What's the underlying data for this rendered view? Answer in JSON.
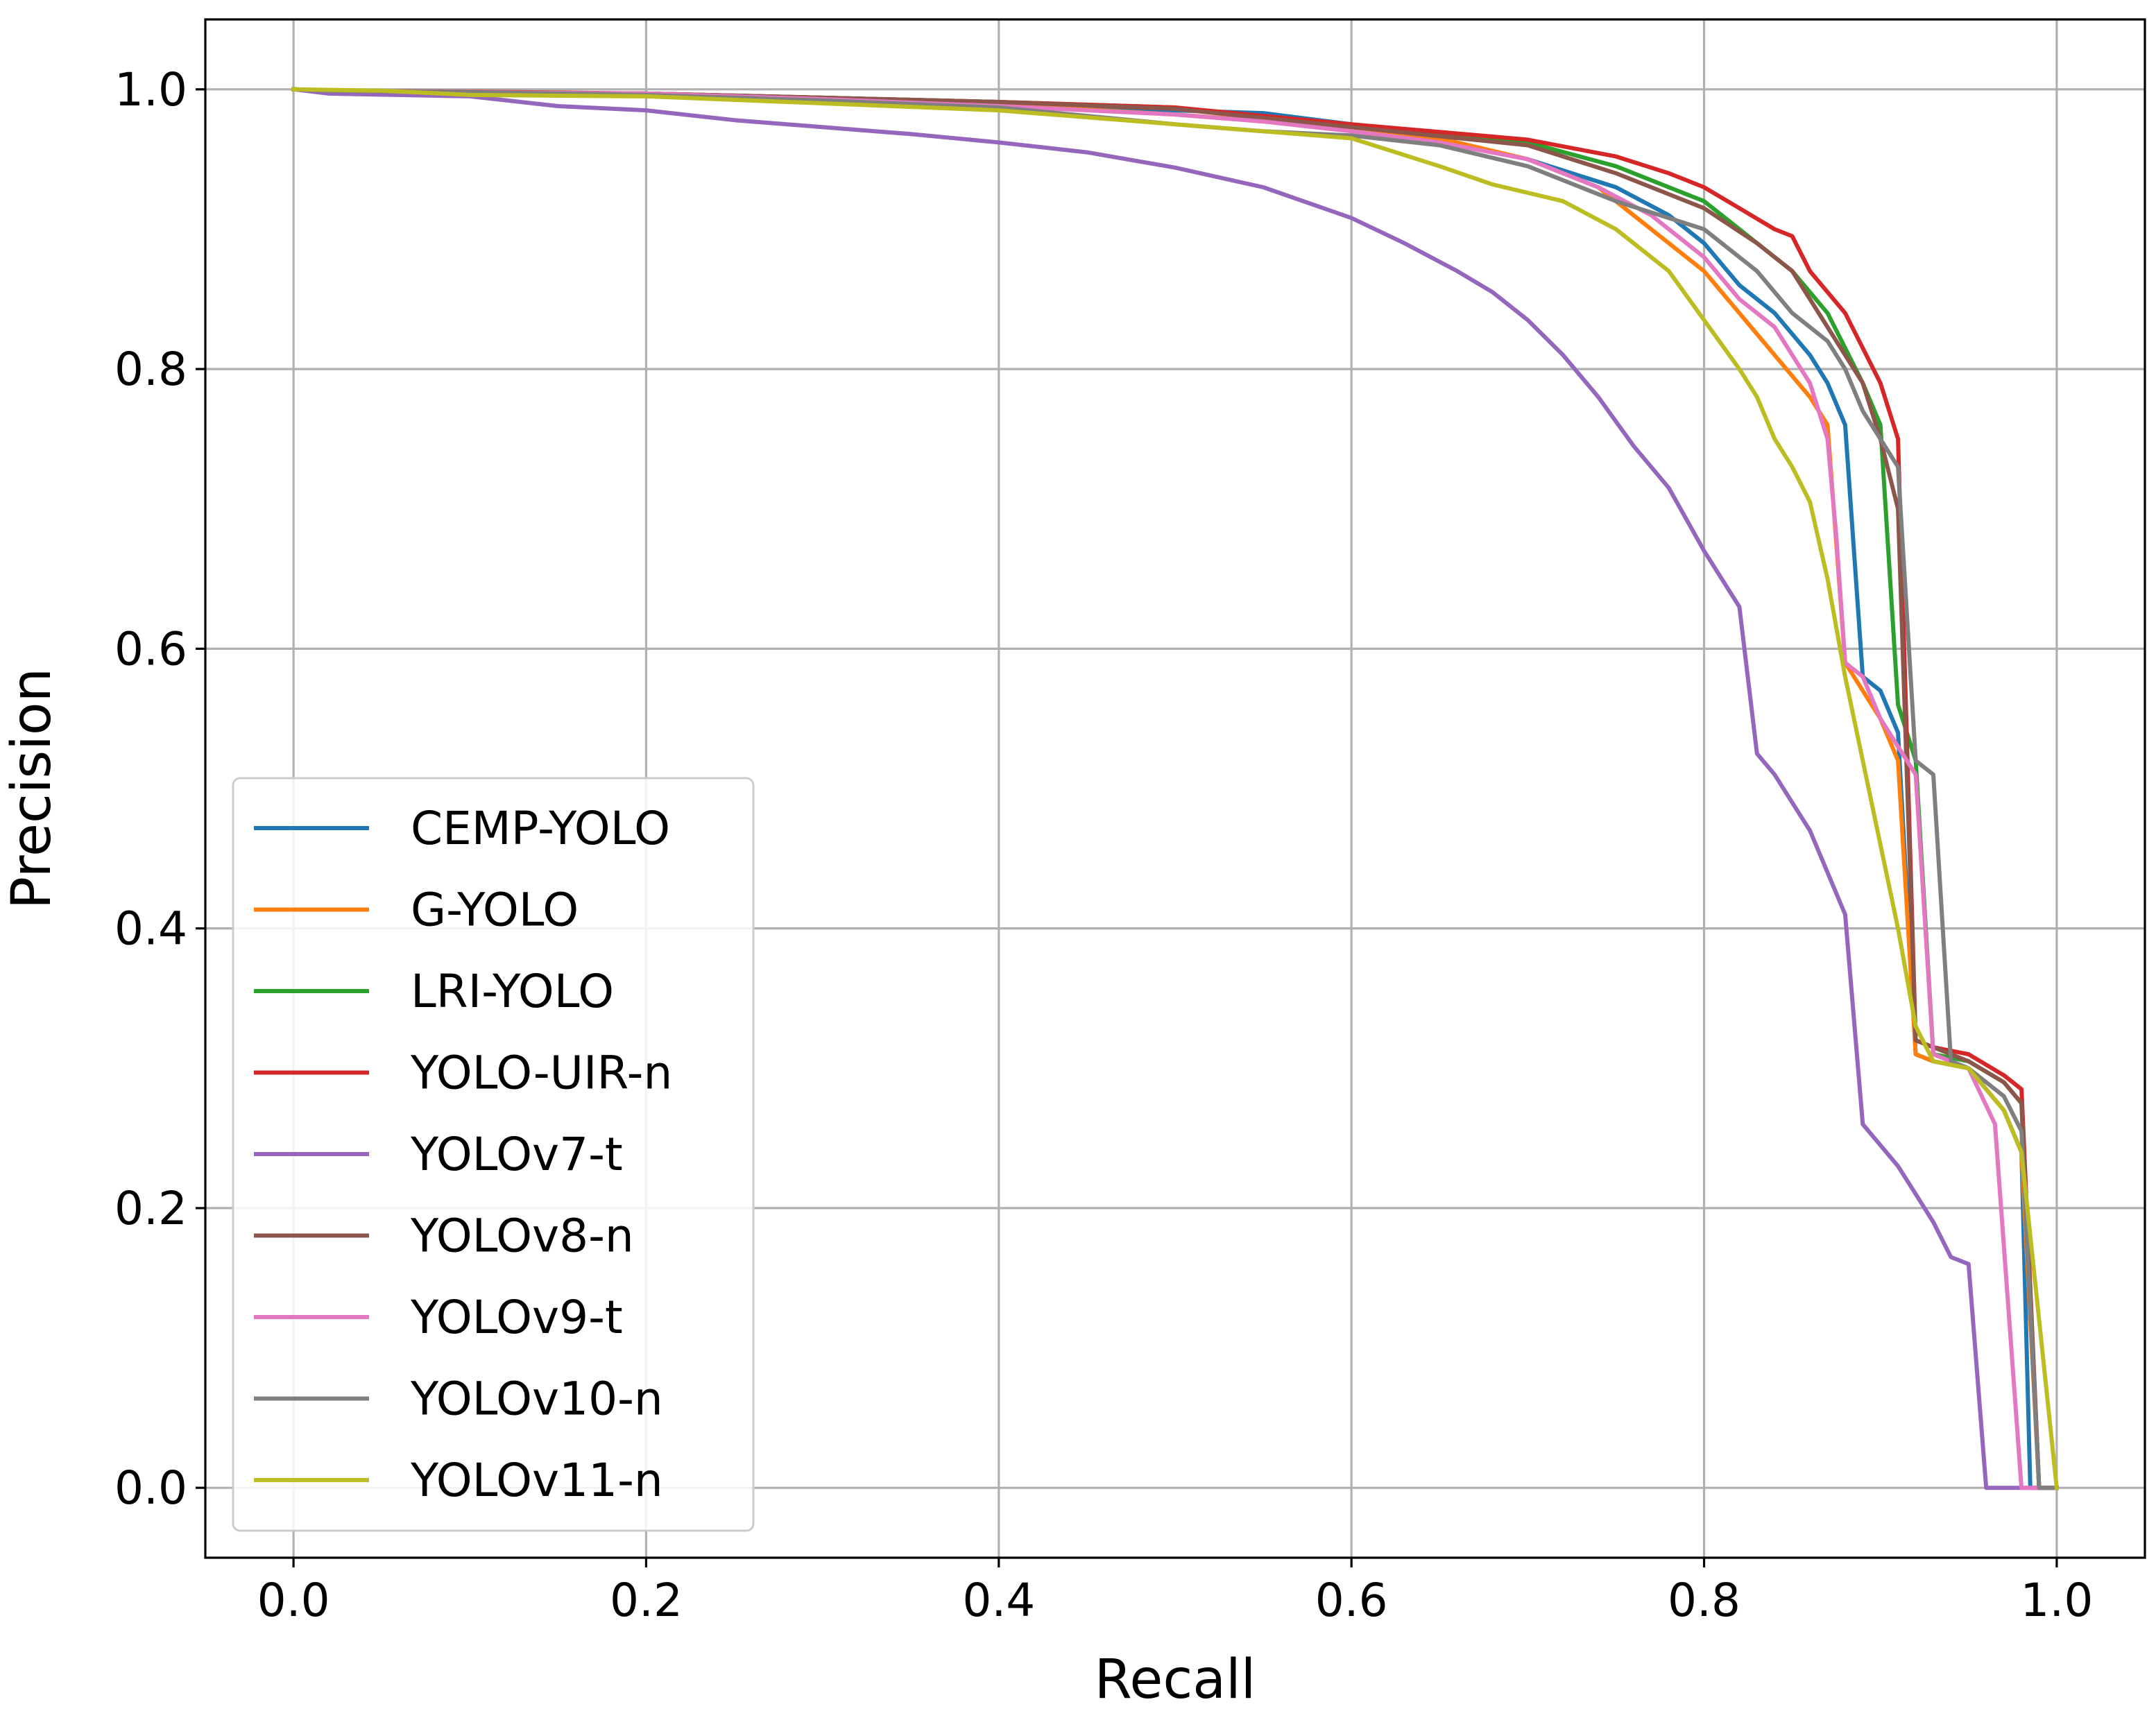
{
  "chart_data": {
    "type": "line",
    "title": "",
    "xlabel": "Recall",
    "ylabel": "Precision",
    "xlim": [
      -0.05,
      1.05
    ],
    "ylim": [
      -0.05,
      1.05
    ],
    "xticks": [
      "0.0",
      "0.2",
      "0.4",
      "0.6",
      "0.8",
      "1.0"
    ],
    "yticks": [
      "0.0",
      "0.2",
      "0.4",
      "0.6",
      "0.8",
      "1.0"
    ],
    "grid": true,
    "legend_position": "lower-left",
    "series": [
      {
        "name": "CEMP-YOLO",
        "color": "#1f77b4",
        "x": [
          0,
          0.02,
          0.1,
          0.2,
          0.3,
          0.4,
          0.5,
          0.55,
          0.6,
          0.65,
          0.7,
          0.75,
          0.78,
          0.8,
          0.82,
          0.84,
          0.86,
          0.87,
          0.88,
          0.89,
          0.9,
          0.91,
          0.92,
          0.93,
          0.95,
          0.97,
          0.98,
          0.985,
          1.0
        ],
        "y": [
          1.0,
          0.999,
          0.998,
          0.997,
          0.993,
          0.989,
          0.985,
          0.983,
          0.975,
          0.963,
          0.95,
          0.93,
          0.91,
          0.89,
          0.86,
          0.84,
          0.81,
          0.79,
          0.76,
          0.58,
          0.57,
          0.54,
          0.31,
          0.305,
          0.3,
          0.27,
          0.24,
          0.0,
          0.0
        ]
      },
      {
        "name": "G-YOLO",
        "color": "#ff7f0e",
        "x": [
          0,
          0.02,
          0.1,
          0.2,
          0.3,
          0.4,
          0.5,
          0.6,
          0.65,
          0.7,
          0.74,
          0.77,
          0.8,
          0.82,
          0.84,
          0.86,
          0.87,
          0.88,
          0.9,
          0.91,
          0.92,
          0.93,
          0.95,
          0.97,
          0.98,
          0.99,
          1.0
        ],
        "y": [
          1.0,
          0.999,
          0.998,
          0.997,
          0.993,
          0.989,
          0.982,
          0.973,
          0.965,
          0.95,
          0.93,
          0.9,
          0.87,
          0.84,
          0.81,
          0.78,
          0.76,
          0.59,
          0.55,
          0.52,
          0.31,
          0.305,
          0.3,
          0.27,
          0.24,
          0.0,
          0.0
        ]
      },
      {
        "name": "LRI-YOLO",
        "color": "#2ca02c",
        "x": [
          0,
          0.02,
          0.1,
          0.2,
          0.3,
          0.4,
          0.5,
          0.6,
          0.7,
          0.75,
          0.8,
          0.83,
          0.85,
          0.87,
          0.89,
          0.9,
          0.91,
          0.92,
          0.93,
          0.95,
          0.97,
          0.98,
          0.99,
          1.0
        ],
        "y": [
          1.0,
          0.999,
          0.998,
          0.997,
          0.994,
          0.991,
          0.987,
          0.974,
          0.962,
          0.945,
          0.92,
          0.89,
          0.87,
          0.84,
          0.79,
          0.76,
          0.56,
          0.52,
          0.31,
          0.305,
          0.29,
          0.275,
          0.0,
          0.0
        ]
      },
      {
        "name": "YOLO-UIR-n",
        "color": "#d62728",
        "x": [
          0,
          0.02,
          0.13,
          0.2,
          0.3,
          0.4,
          0.5,
          0.6,
          0.7,
          0.75,
          0.78,
          0.8,
          0.82,
          0.84,
          0.85,
          0.86,
          0.88,
          0.9,
          0.91,
          0.92,
          0.93,
          0.95,
          0.97,
          0.98,
          0.99,
          1.0
        ],
        "y": [
          1.0,
          0.999,
          0.998,
          0.997,
          0.994,
          0.991,
          0.987,
          0.975,
          0.964,
          0.952,
          0.94,
          0.93,
          0.915,
          0.9,
          0.895,
          0.87,
          0.84,
          0.79,
          0.75,
          0.32,
          0.315,
          0.31,
          0.295,
          0.285,
          0.0,
          0.0
        ]
      },
      {
        "name": "YOLOv7-t",
        "color": "#9467bd",
        "x": [
          0,
          0.02,
          0.1,
          0.15,
          0.2,
          0.25,
          0.3,
          0.35,
          0.4,
          0.45,
          0.5,
          0.55,
          0.6,
          0.63,
          0.66,
          0.68,
          0.7,
          0.72,
          0.74,
          0.76,
          0.78,
          0.8,
          0.82,
          0.83,
          0.84,
          0.85,
          0.86,
          0.87,
          0.88,
          0.89,
          0.9,
          0.91,
          0.92,
          0.93,
          0.94,
          0.95,
          0.96,
          0.97,
          1.0
        ],
        "y": [
          1.0,
          0.997,
          0.995,
          0.988,
          0.985,
          0.978,
          0.973,
          0.968,
          0.962,
          0.955,
          0.944,
          0.93,
          0.908,
          0.89,
          0.87,
          0.855,
          0.835,
          0.81,
          0.78,
          0.745,
          0.715,
          0.67,
          0.63,
          0.525,
          0.51,
          0.49,
          0.47,
          0.44,
          0.41,
          0.26,
          0.245,
          0.23,
          0.21,
          0.19,
          0.165,
          0.16,
          0.0,
          0.0,
          0.0
        ]
      },
      {
        "name": "YOLOv8-n",
        "color": "#8c564b",
        "x": [
          0,
          0.02,
          0.1,
          0.2,
          0.3,
          0.4,
          0.5,
          0.6,
          0.7,
          0.75,
          0.8,
          0.83,
          0.85,
          0.87,
          0.89,
          0.9,
          0.91,
          0.92,
          0.93,
          0.95,
          0.97,
          0.98,
          0.99,
          1.0
        ],
        "y": [
          1.0,
          0.999,
          0.998,
          0.997,
          0.994,
          0.991,
          0.986,
          0.973,
          0.96,
          0.94,
          0.915,
          0.89,
          0.87,
          0.83,
          0.79,
          0.75,
          0.7,
          0.32,
          0.315,
          0.305,
          0.29,
          0.275,
          0.0,
          0.0
        ]
      },
      {
        "name": "YOLOv9-t",
        "color": "#e377c2",
        "x": [
          0,
          0.02,
          0.1,
          0.2,
          0.3,
          0.4,
          0.5,
          0.55,
          0.6,
          0.65,
          0.7,
          0.74,
          0.77,
          0.8,
          0.82,
          0.84,
          0.86,
          0.87,
          0.875,
          0.88,
          0.89,
          0.9,
          0.91,
          0.92,
          0.93,
          0.95,
          0.965,
          0.98,
          0.99,
          1.0
        ],
        "y": [
          1.0,
          0.999,
          0.998,
          0.997,
          0.993,
          0.988,
          0.982,
          0.977,
          0.97,
          0.962,
          0.95,
          0.93,
          0.91,
          0.88,
          0.85,
          0.83,
          0.79,
          0.75,
          0.68,
          0.59,
          0.58,
          0.55,
          0.53,
          0.51,
          0.31,
          0.3,
          0.26,
          0.0,
          0.0,
          0.0
        ]
      },
      {
        "name": "YOLOv10-n",
        "color": "#7f7f7f",
        "x": [
          0,
          0.02,
          0.1,
          0.2,
          0.3,
          0.4,
          0.5,
          0.55,
          0.6,
          0.65,
          0.7,
          0.75,
          0.8,
          0.83,
          0.85,
          0.87,
          0.88,
          0.89,
          0.9,
          0.91,
          0.92,
          0.93,
          0.94,
          0.95,
          0.97,
          0.98,
          0.99,
          1.0
        ],
        "y": [
          1.0,
          0.999,
          0.998,
          0.996,
          0.992,
          0.987,
          0.975,
          0.97,
          0.967,
          0.96,
          0.945,
          0.92,
          0.9,
          0.87,
          0.84,
          0.82,
          0.8,
          0.77,
          0.75,
          0.73,
          0.52,
          0.51,
          0.305,
          0.3,
          0.28,
          0.255,
          0.0,
          0.0
        ]
      },
      {
        "name": "YOLOv11-n",
        "color": "#bcbd22",
        "x": [
          0,
          0.05,
          0.1,
          0.2,
          0.3,
          0.4,
          0.5,
          0.6,
          0.65,
          0.68,
          0.72,
          0.75,
          0.78,
          0.8,
          0.82,
          0.83,
          0.84,
          0.85,
          0.86,
          0.87,
          0.88,
          0.89,
          0.9,
          0.91,
          0.92,
          0.93,
          0.95,
          0.97,
          0.98,
          1.0
        ],
        "y": [
          1.0,
          0.999,
          0.996,
          0.995,
          0.99,
          0.985,
          0.975,
          0.965,
          0.945,
          0.932,
          0.92,
          0.9,
          0.87,
          0.835,
          0.8,
          0.78,
          0.75,
          0.73,
          0.705,
          0.65,
          0.58,
          0.52,
          0.46,
          0.4,
          0.33,
          0.305,
          0.3,
          0.27,
          0.24,
          0.0
        ]
      }
    ]
  }
}
